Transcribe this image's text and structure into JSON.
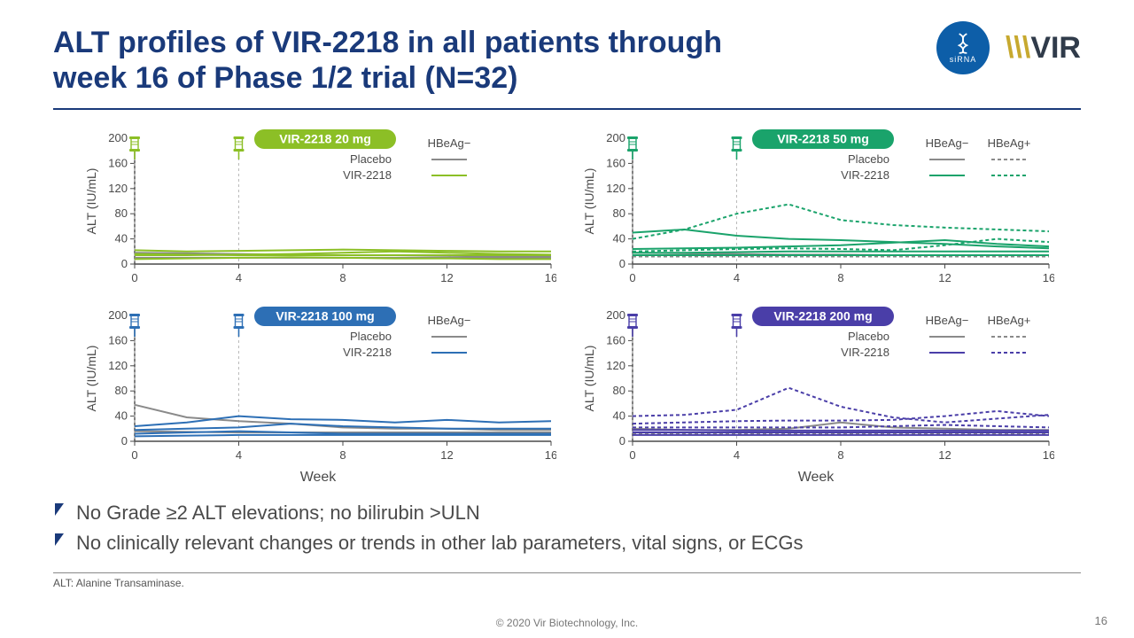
{
  "title_line1": "ALT profiles of VIR-2218 in all patients through",
  "title_line2": "week 16 of Phase 1/2 trial (N=32)",
  "title_color": "#1a3a7a",
  "logos": {
    "sirna_label": "siRNA",
    "vir_text": "VIR"
  },
  "chart_common": {
    "xlim": [
      0,
      16
    ],
    "ylim": [
      0,
      200
    ],
    "xtick_step": 4,
    "ytick_step": 40,
    "xlabel": "Week",
    "ylabel": "ALT (IU/mL)",
    "placebo_color": "#8a8a8a",
    "placebo_label": "Placebo",
    "treat_label": "VIR-2218",
    "legend_hbeag_neg": "HBeAg−",
    "legend_hbeag_pos": "HBeAg+",
    "syringe_x": [
      0,
      4
    ],
    "axis_fontsize": 13,
    "ylabel_fontsize": 14,
    "pill_fontsize": 14,
    "line_width": 2,
    "dash_pattern": "4,3"
  },
  "panels": [
    {
      "pill": "VIR-2218 20 mg",
      "pill_color": "#8cbf26",
      "treat_color": "#8cbf26",
      "has_pos": false,
      "series": [
        {
          "kind": "placebo",
          "dash": false,
          "y": [
            18,
            17,
            16,
            15,
            14,
            14,
            13,
            12,
            12
          ]
        },
        {
          "kind": "placebo",
          "dash": false,
          "y": [
            10,
            10,
            10,
            10,
            10,
            10,
            10,
            10,
            10
          ]
        },
        {
          "kind": "treat",
          "dash": false,
          "y": [
            22,
            20,
            21,
            22,
            23,
            22,
            21,
            20,
            20
          ]
        },
        {
          "kind": "treat",
          "dash": false,
          "y": [
            14,
            14,
            15,
            16,
            18,
            20,
            18,
            16,
            15
          ]
        },
        {
          "kind": "treat",
          "dash": false,
          "y": [
            16,
            15,
            14,
            14,
            14,
            14,
            14,
            14,
            14
          ]
        },
        {
          "kind": "treat",
          "dash": false,
          "y": [
            8,
            9,
            10,
            11,
            10,
            9,
            9,
            8,
            8
          ]
        }
      ]
    },
    {
      "pill": "VIR-2218 50 mg",
      "pill_color": "#1aa36b",
      "treat_color": "#1aa36b",
      "has_pos": true,
      "series": [
        {
          "kind": "placebo",
          "dash": false,
          "y": [
            18,
            17,
            16,
            15,
            15,
            14,
            14,
            14,
            14
          ]
        },
        {
          "kind": "placebo",
          "dash": true,
          "y": [
            12,
            12,
            12,
            12,
            12,
            12,
            12,
            12,
            12
          ]
        },
        {
          "kind": "treat",
          "dash": false,
          "y": [
            50,
            55,
            45,
            40,
            38,
            35,
            32,
            28,
            25
          ]
        },
        {
          "kind": "treat",
          "dash": false,
          "y": [
            24,
            25,
            26,
            28,
            30,
            34,
            38,
            32,
            28
          ]
        },
        {
          "kind": "treat",
          "dash": false,
          "y": [
            18,
            18,
            19,
            20,
            20,
            20,
            20,
            20,
            20
          ]
        },
        {
          "kind": "treat",
          "dash": false,
          "y": [
            14,
            14,
            14,
            14,
            14,
            14,
            14,
            14,
            14
          ]
        },
        {
          "kind": "treat",
          "dash": true,
          "y": [
            40,
            55,
            80,
            95,
            70,
            62,
            58,
            55,
            52
          ]
        },
        {
          "kind": "treat",
          "dash": true,
          "y": [
            20,
            22,
            24,
            25,
            24,
            22,
            30,
            40,
            35
          ]
        }
      ]
    },
    {
      "pill": "VIR-2218 100 mg",
      "pill_color": "#2d6fb5",
      "treat_color": "#2d6fb5",
      "has_pos": false,
      "series": [
        {
          "kind": "placebo",
          "dash": false,
          "y": [
            58,
            38,
            32,
            28,
            22,
            20,
            20,
            18,
            18
          ]
        },
        {
          "kind": "placebo",
          "dash": false,
          "y": [
            16,
            15,
            14,
            14,
            14,
            14,
            14,
            14,
            14
          ]
        },
        {
          "kind": "treat",
          "dash": false,
          "y": [
            24,
            30,
            40,
            35,
            34,
            30,
            34,
            30,
            32
          ]
        },
        {
          "kind": "treat",
          "dash": false,
          "y": [
            18,
            20,
            22,
            28,
            24,
            22,
            20,
            20,
            20
          ]
        },
        {
          "kind": "treat",
          "dash": false,
          "y": [
            12,
            14,
            16,
            14,
            12,
            12,
            12,
            12,
            12
          ]
        },
        {
          "kind": "treat",
          "dash": false,
          "y": [
            8,
            9,
            10,
            10,
            10,
            10,
            10,
            10,
            10
          ]
        }
      ]
    },
    {
      "pill": "VIR-2218 200 mg",
      "pill_color": "#4a3ea8",
      "treat_color": "#4a3ea8",
      "has_pos": true,
      "series": [
        {
          "kind": "placebo",
          "dash": false,
          "y": [
            20,
            18,
            18,
            20,
            30,
            22,
            20,
            18,
            18
          ]
        },
        {
          "kind": "placebo",
          "dash": true,
          "y": [
            12,
            12,
            12,
            12,
            12,
            12,
            12,
            12,
            12
          ]
        },
        {
          "kind": "treat",
          "dash": false,
          "y": [
            18,
            18,
            17,
            17,
            17,
            17,
            17,
            17,
            17
          ]
        },
        {
          "kind": "treat",
          "dash": false,
          "y": [
            14,
            14,
            14,
            14,
            14,
            14,
            14,
            14,
            14
          ]
        },
        {
          "kind": "treat",
          "dash": false,
          "y": [
            10,
            10,
            10,
            10,
            10,
            10,
            10,
            10,
            10
          ]
        },
        {
          "kind": "treat",
          "dash": true,
          "y": [
            40,
            42,
            50,
            85,
            55,
            38,
            30,
            36,
            42
          ]
        },
        {
          "kind": "treat",
          "dash": true,
          "y": [
            28,
            30,
            32,
            33,
            33,
            34,
            40,
            48,
            40
          ]
        },
        {
          "kind": "treat",
          "dash": true,
          "y": [
            22,
            22,
            22,
            22,
            22,
            24,
            26,
            24,
            22
          ]
        }
      ]
    }
  ],
  "bullets": [
    "No Grade ≥2 ALT elevations; no bilirubin >ULN",
    "No clinically relevant changes or trends in other lab parameters, vital signs, or ECGs"
  ],
  "bullet_marker_color": "#1a3a7a",
  "footnote": "ALT: Alanine Transaminase.",
  "copyright": "© 2020 Vir Biotechnology, Inc.",
  "page_number": "16"
}
